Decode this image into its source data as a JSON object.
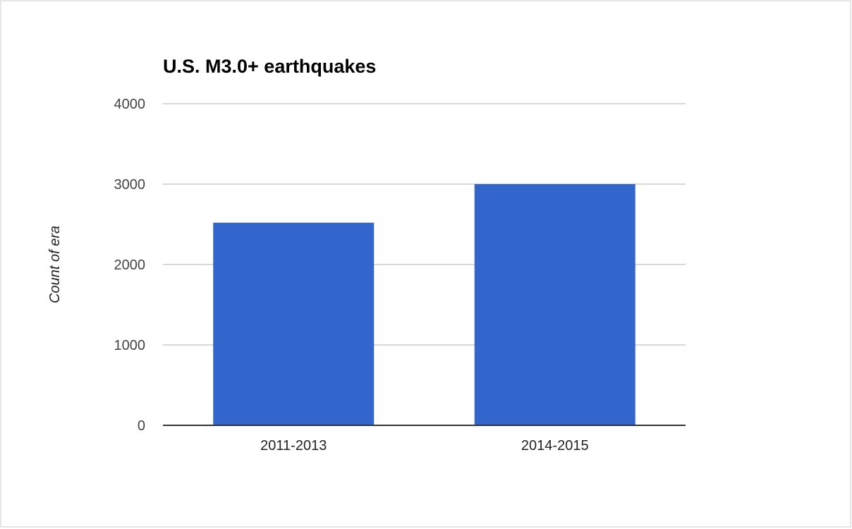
{
  "chart_data": {
    "type": "bar",
    "title": "U.S. M3.0+ earthquakes",
    "xlabel": "",
    "ylabel": "Count of era",
    "categories": [
      "2011-2013",
      "2014-2015"
    ],
    "values": [
      2520,
      3000
    ],
    "ylim": [
      0,
      4000
    ],
    "yticks": [
      "0",
      "1000",
      "2000",
      "3000",
      "4000"
    ],
    "grid": true,
    "legend": "none",
    "bar_color": "#3366cc"
  }
}
